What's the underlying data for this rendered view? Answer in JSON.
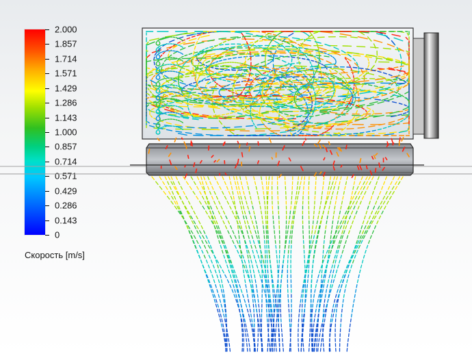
{
  "legend": {
    "ticks": [
      "2.000",
      "1.857",
      "1.714",
      "1.571",
      "1.429",
      "1.286",
      "1.143",
      "1.000",
      "0.857",
      "0.714",
      "0.571",
      "0.429",
      "0.286",
      "0.143",
      "0"
    ],
    "title": "Скорость [m/s]",
    "max_color": "#ff0000",
    "min_color": "#0000ff"
  },
  "scene": {
    "background": "#f2f3f4",
    "body_outline_color": "#333333",
    "flow_colors": [
      "#ff2010",
      "#ff9000",
      "#ffe000",
      "#a0e000",
      "#30c040",
      "#00c8c0",
      "#0090e0",
      "#1050d0"
    ]
  }
}
